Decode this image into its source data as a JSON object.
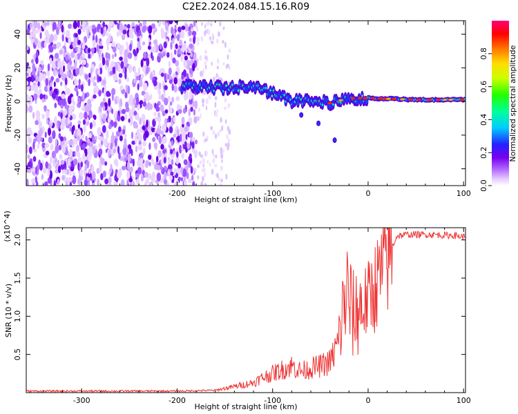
{
  "chart_data": [
    {
      "type": "heatmap",
      "title": "C2E2.2024.084.15.16.R09",
      "xlabel": "Height of straight line (km)",
      "ylabel": "Frequency (Hz)",
      "xlim": [
        -358,
        102
      ],
      "ylim": [
        -50,
        48
      ],
      "x_ticks": [
        -300,
        -200,
        -100,
        0,
        100
      ],
      "y_ticks": [
        -40,
        -20,
        0,
        20,
        40
      ],
      "colorbar": {
        "label": "Normalized spectral amplitude",
        "range": [
          0,
          1
        ],
        "ticks": [
          0.0,
          0.2,
          0.4,
          0.6,
          0.8
        ],
        "colormap": "rainbow: white-purple-blue-cyan-green-yellow-orange-red-magenta"
      },
      "features": {
        "noise_region_x": [
          -358,
          -180
        ],
        "signal_band": [
          {
            "x": -195,
            "y": 9
          },
          {
            "x": -150,
            "y": 8
          },
          {
            "x": -120,
            "y": 9
          },
          {
            "x": -100,
            "y": 5
          },
          {
            "x": -80,
            "y": 0
          },
          {
            "x": -60,
            "y": 1
          },
          {
            "x": -40,
            "y": -1
          },
          {
            "x": -20,
            "y": 2
          },
          {
            "x": 0,
            "y": 2
          },
          {
            "x": 50,
            "y": 1
          },
          {
            "x": 100,
            "y": 1
          }
        ],
        "secondary_branch": [
          {
            "x": -70,
            "y": -8
          },
          {
            "x": -52,
            "y": -13
          },
          {
            "x": -35,
            "y": -23
          }
        ]
      }
    },
    {
      "type": "line",
      "xlabel": "Height of straight line (km)",
      "ylabel": "SNR (10 * v/v)",
      "y_multiplier": "(x10^4)",
      "xlim": [
        -358,
        102
      ],
      "ylim": [
        0,
        21600
      ],
      "x_ticks": [
        -300,
        -200,
        -100,
        0,
        100
      ],
      "y_ticks": [
        5000,
        10000,
        15000,
        20000
      ],
      "y_tick_labels": [
        "0.5",
        "1.0",
        "1.5",
        "2.0"
      ],
      "color": "#ee3333",
      "series": [
        {
          "x": [
            -358,
            -300,
            -250,
            -200,
            -160,
            -140,
            -120,
            -110,
            -100,
            -90,
            -80,
            -70,
            -60,
            -50,
            -40,
            -32,
            -28,
            -25,
            -22,
            -18,
            -15,
            -10,
            -5,
            0,
            5,
            10,
            15,
            20,
            25,
            30,
            40,
            50,
            60,
            70,
            80,
            90,
            100
          ],
          "values": [
            200,
            200,
            200,
            200,
            300,
            800,
            1300,
            2000,
            2500,
            3000,
            3500,
            2800,
            3200,
            3500,
            4000,
            6000,
            9000,
            12000,
            13000,
            11000,
            10000,
            11000,
            11500,
            12000,
            13500,
            14500,
            16000,
            17500,
            19000,
            20500,
            20700,
            20700,
            20700,
            20700,
            20600,
            20600,
            20400
          ]
        }
      ]
    }
  ]
}
